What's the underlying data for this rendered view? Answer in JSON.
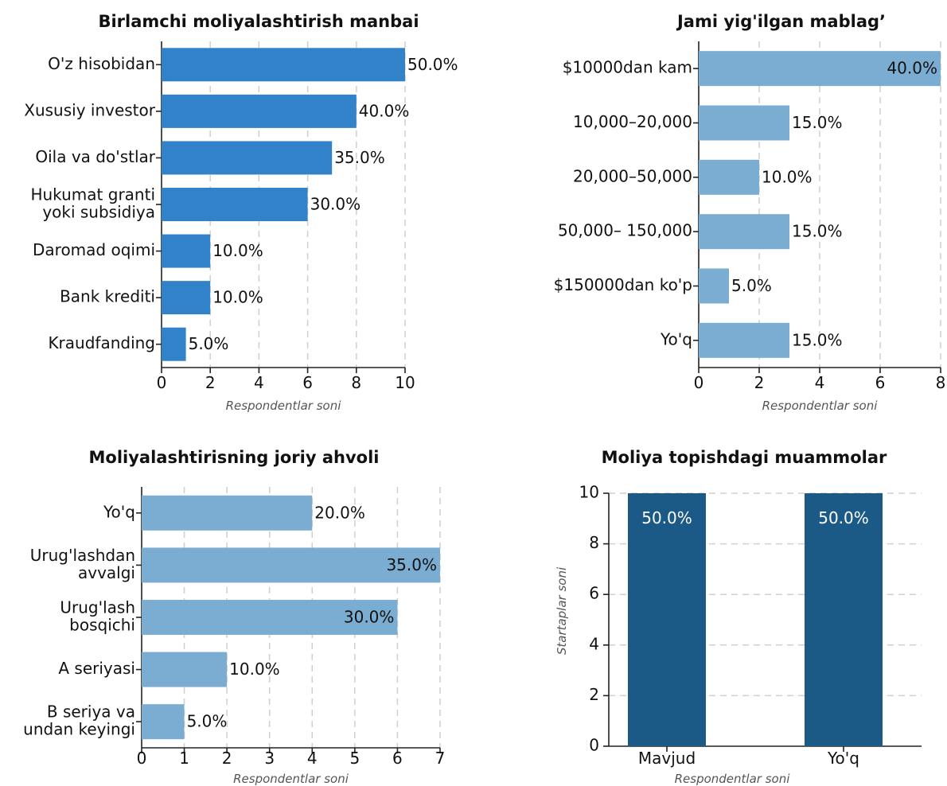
{
  "chart_data": [
    {
      "type": "bar",
      "orientation": "horizontal",
      "title": "Birlamchi moliyalashtirish manbai",
      "categories": [
        "O'z hisobidan",
        "Xususiy investor",
        "Oila va do'stlar",
        "Hukumat granti\nyoki subsidiya",
        "Daromad oqimi",
        "Bank krediti",
        "Kraudfanding"
      ],
      "values": [
        10,
        8,
        7,
        6,
        2,
        2,
        1
      ],
      "data_labels": [
        "50.0%",
        "40.0%",
        "35.0%",
        "30.0%",
        "10.0%",
        "10.0%",
        "5.0%"
      ],
      "xlabel": "Respondentlar soni",
      "xlim": [
        0,
        10
      ],
      "xticks": [
        0,
        2,
        4,
        6,
        8,
        10
      ],
      "grid": true,
      "color": "#3182c8"
    },
    {
      "type": "bar",
      "orientation": "horizontal",
      "title": "Jami yig'ilgan mablag’",
      "categories": [
        "$10000dan kam",
        "10,000–20,000",
        "20,000–50,000",
        "50,000– 150,000",
        "$150000dan ko'p",
        "Yo'q"
      ],
      "values": [
        8,
        3,
        2,
        3,
        1,
        3
      ],
      "data_labels": [
        "40.0%",
        "15.0%",
        "10.0%",
        "15.0%",
        "5.0%",
        "15.0%"
      ],
      "xlabel": "Respondentlar soni",
      "xlim": [
        0,
        8
      ],
      "xticks": [
        0,
        2,
        4,
        6,
        8
      ],
      "grid": true,
      "color": "#7aadd1"
    },
    {
      "type": "bar",
      "orientation": "horizontal",
      "title": "Moliyalashtirisning joriy ahvoli",
      "categories": [
        "Yo'q",
        "Urug'lashdan\navvalgi",
        "Urug'lash\nbosqichi",
        "A seriyasi",
        "B seriya va\nundan keyingi"
      ],
      "values": [
        4,
        7,
        6,
        2,
        1
      ],
      "data_labels": [
        "20.0%",
        "35.0%",
        "30.0%",
        "10.0%",
        "5.0%"
      ],
      "xlabel": "Respondentlar soni",
      "xlim": [
        0,
        7
      ],
      "xticks": [
        0,
        1,
        2,
        3,
        4,
        5,
        6,
        7
      ],
      "grid": true,
      "color": "#7aadd1"
    },
    {
      "type": "bar",
      "orientation": "vertical",
      "title": "Moliya topishdagi muammolar",
      "categories": [
        "Mavjud",
        "Yo'q"
      ],
      "values": [
        10,
        10
      ],
      "data_labels": [
        "50.0%",
        "50.0%"
      ],
      "xlabel": "Respondentlar soni",
      "ylabel": "Startaplar soni",
      "ylim": [
        0,
        10
      ],
      "yticks": [
        0,
        2,
        4,
        6,
        8,
        10
      ],
      "grid": true,
      "color": "#1b5a87"
    }
  ]
}
